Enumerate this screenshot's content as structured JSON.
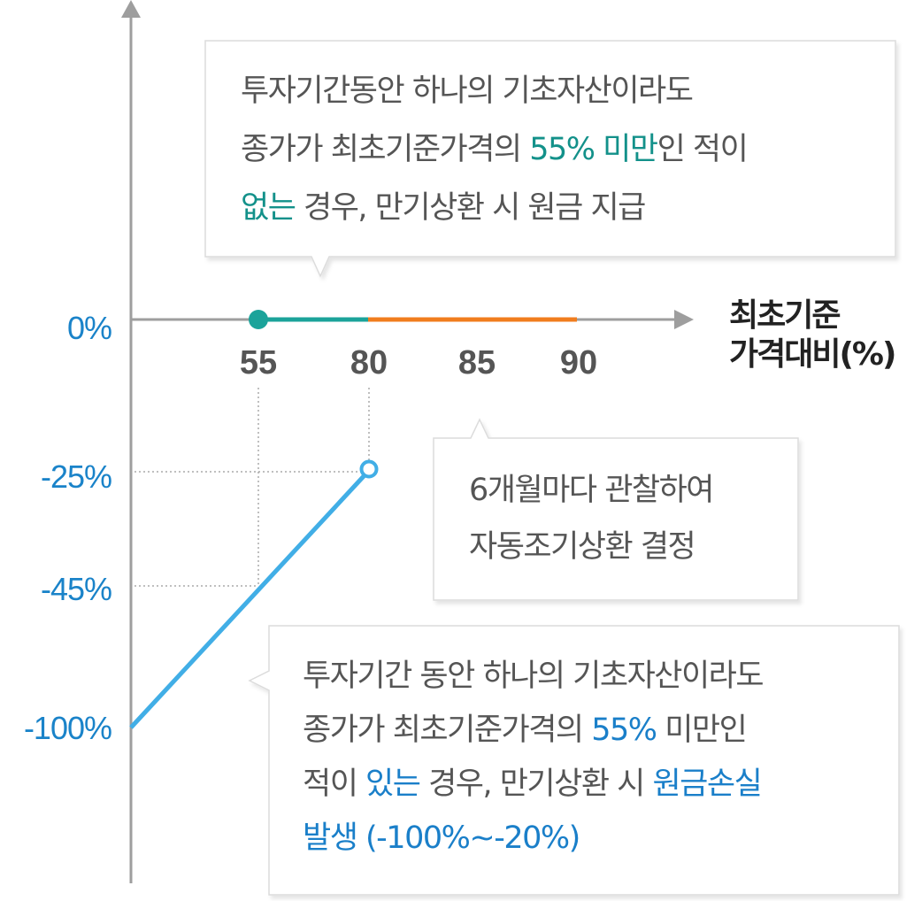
{
  "y_axis": {
    "labels": [
      {
        "text": "0%",
        "value": 0
      },
      {
        "text": "-25%",
        "value": -25
      },
      {
        "text": "-45%",
        "value": -45
      },
      {
        "text": "-100%",
        "value": -100
      }
    ]
  },
  "x_axis": {
    "title_line1": "최초기준",
    "title_line2": "가격대비(%)",
    "ticks": [
      "55",
      "80",
      "85",
      "90"
    ]
  },
  "bubble_top": {
    "line1": "투자기간동안 하나의 기초자산이라도",
    "line2_a": "종가가 최초기준가격의 ",
    "line2_b": "55% 미만",
    "line2_c": "인 적이",
    "line3_a": "없는",
    "line3_b": " 경우, 만기상환 시 원금 지급"
  },
  "bubble_mid": {
    "line1": "6개월마다 관찰하여",
    "line2": "자동조기상환 결정"
  },
  "bubble_bottom": {
    "line1": "투자기간 동안 하나의 기초자산이라도",
    "line2_a": "종가가 최초기준가격의 ",
    "line2_b": "55%",
    "line2_c": " 미만인",
    "line3_a": "적이 ",
    "line3_b": "있는",
    "line3_c": " 경우, 만기상환 시 ",
    "line3_d": "원금손실",
    "line4": "발생 (-100%~-20%)"
  },
  "colors": {
    "teal": "#1ba39a",
    "orange": "#f07d1e",
    "loss_line": "#41aee6",
    "axis": "#9e9e9e",
    "label_blue": "#1a83c9"
  }
}
